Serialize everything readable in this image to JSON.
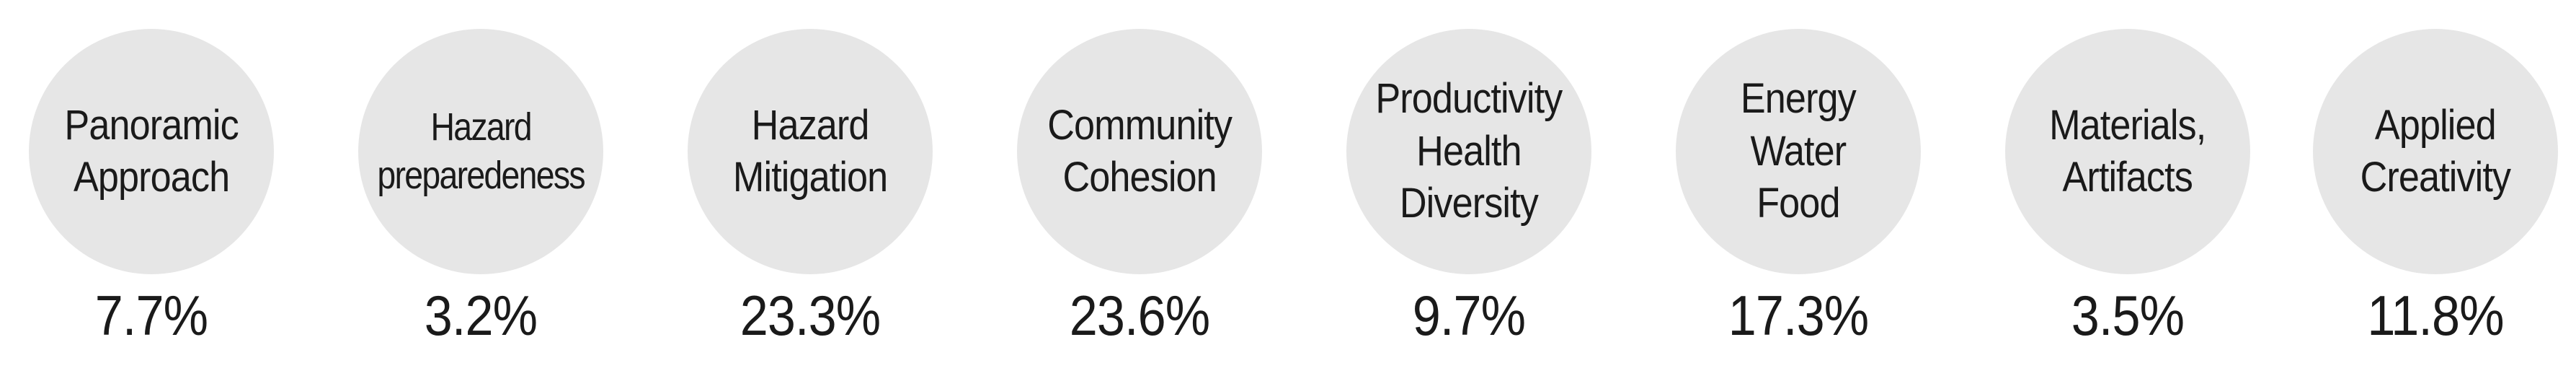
{
  "categories": [
    {
      "lines": [
        "Panoramic",
        "Approach"
      ],
      "percent": "7.7%"
    },
    {
      "lines": [
        "Hazard",
        "preparedeness"
      ],
      "percent": "3.2%"
    },
    {
      "lines": [
        "Hazard",
        "Mitigation"
      ],
      "percent": "23.3%"
    },
    {
      "lines": [
        "Community",
        "Cohesion"
      ],
      "percent": "23.6%"
    },
    {
      "lines": [
        "Productivity",
        "Health",
        "Diversity"
      ],
      "percent": "9.7%"
    },
    {
      "lines": [
        "Energy",
        "Water",
        "Food"
      ],
      "percent": "17.3%"
    },
    {
      "lines": [
        "Materials,",
        "Artifacts"
      ],
      "percent": "3.5%"
    },
    {
      "lines": [
        "Applied",
        "Creativity"
      ],
      "percent": "11.8%"
    }
  ],
  "colors": {
    "circle_fill": "#e6e6e6",
    "text": "#1a1a1a"
  }
}
